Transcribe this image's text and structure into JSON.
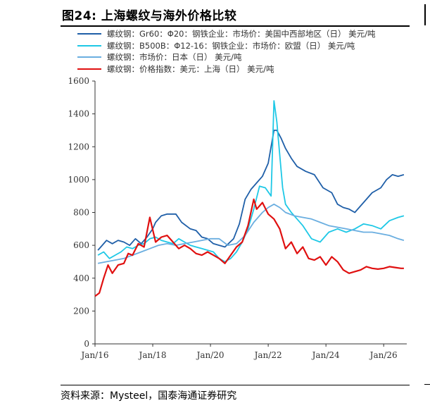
{
  "title": "图24:  上海螺纹与海外价格比较",
  "source": "资料来源：Mysteel，国泰海通证券研究",
  "chart_data": {
    "type": "line",
    "ylim": [
      0,
      1600
    ],
    "y_ticks": [
      "0",
      "200",
      "400",
      "600",
      "800",
      "1000",
      "1200",
      "1400",
      "1600"
    ],
    "x_ticks": [
      "Jan/16",
      "Jan/18",
      "Jan/20",
      "Jan/22",
      "Jan/24",
      "Jan/26"
    ],
    "xlim": [
      2016.0,
      2026.8
    ],
    "grid": false,
    "legend_position": "top-left",
    "series": [
      {
        "name": "螺纹钢：Gr60：Φ20：钢铁企业：市场价：美国中西部地区（日） 美元/吨",
        "color": "#1f5fa8",
        "x": [
          2016.1,
          2016.25,
          2016.4,
          2016.6,
          2016.8,
          2017.0,
          2017.2,
          2017.4,
          2017.6,
          2017.8,
          2018.0,
          2018.1,
          2018.3,
          2018.5,
          2018.8,
          2019.0,
          2019.3,
          2019.5,
          2019.7,
          2019.9,
          2020.1,
          2020.3,
          2020.5,
          2020.8,
          2021.0,
          2021.2,
          2021.4,
          2021.6,
          2021.8,
          2022.0,
          2022.2,
          2022.3,
          2022.45,
          2022.6,
          2022.8,
          2023.0,
          2023.3,
          2023.6,
          2023.9,
          2024.2,
          2024.4,
          2024.6,
          2024.8,
          2025.0,
          2025.3,
          2025.6,
          2025.9,
          2026.1,
          2026.3,
          2026.5,
          2026.7
        ],
        "y": [
          570,
          600,
          630,
          610,
          630,
          620,
          600,
          640,
          610,
          650,
          700,
          740,
          780,
          790,
          790,
          740,
          700,
          690,
          650,
          640,
          610,
          600,
          590,
          640,
          730,
          880,
          940,
          980,
          1020,
          1100,
          1300,
          1300,
          1250,
          1190,
          1130,
          1080,
          1050,
          1030,
          950,
          920,
          850,
          830,
          820,
          800,
          860,
          920,
          950,
          1000,
          1030,
          1020,
          1030
        ]
      },
      {
        "name": "螺纹钢：B500B：Φ12-16：钢铁企业：市场价：欧盟（日） 美元/吨",
        "color": "#1ec8e6",
        "x": [
          2016.1,
          2016.3,
          2016.5,
          2016.7,
          2016.9,
          2017.1,
          2017.3,
          2017.5,
          2017.7,
          2017.9,
          2018.1,
          2018.3,
          2018.5,
          2018.7,
          2018.9,
          2019.1,
          2019.3,
          2019.5,
          2019.7,
          2019.9,
          2020.1,
          2020.3,
          2020.5,
          2020.7,
          2020.9,
          2021.1,
          2021.3,
          2021.5,
          2021.7,
          2021.9,
          2022.1,
          2022.2,
          2022.3,
          2022.4,
          2022.5,
          2022.6,
          2022.8,
          2023.0,
          2023.2,
          2023.5,
          2023.8,
          2024.1,
          2024.4,
          2024.7,
          2025.0,
          2025.3,
          2025.6,
          2025.9,
          2026.2,
          2026.5,
          2026.7
        ],
        "y": [
          540,
          560,
          520,
          540,
          560,
          590,
          580,
          600,
          610,
          640,
          650,
          630,
          620,
          610,
          640,
          620,
          600,
          590,
          580,
          570,
          560,
          520,
          500,
          520,
          560,
          620,
          700,
          820,
          960,
          950,
          900,
          1480,
          1350,
          1150,
          950,
          850,
          800,
          760,
          720,
          640,
          620,
          680,
          700,
          680,
          700,
          730,
          720,
          700,
          750,
          770,
          780
        ]
      },
      {
        "name": "螺纹钢：市场价：日本（日） 美元/吨",
        "color": "#6aaee0",
        "x": [
          2016.1,
          2016.4,
          2016.7,
          2017.0,
          2017.3,
          2017.6,
          2017.9,
          2018.2,
          2018.5,
          2018.8,
          2019.1,
          2019.4,
          2019.7,
          2020.0,
          2020.3,
          2020.6,
          2020.9,
          2021.2,
          2021.5,
          2021.8,
          2022.0,
          2022.2,
          2022.4,
          2022.6,
          2022.9,
          2023.2,
          2023.5,
          2023.8,
          2024.1,
          2024.4,
          2024.7,
          2025.0,
          2025.3,
          2025.6,
          2025.9,
          2026.2,
          2026.5,
          2026.7
        ],
        "y": [
          490,
          500,
          510,
          520,
          540,
          560,
          580,
          600,
          610,
          600,
          610,
          620,
          630,
          640,
          640,
          600,
          610,
          660,
          740,
          800,
          830,
          850,
          830,
          800,
          780,
          770,
          760,
          740,
          720,
          710,
          700,
          690,
          680,
          680,
          670,
          660,
          640,
          630
        ]
      },
      {
        "name": "螺纹钢：价格指数：美元：上海（日） 美元/吨",
        "color": "#e01010",
        "x": [
          2016.0,
          2016.15,
          2016.3,
          2016.45,
          2016.6,
          2016.8,
          2017.0,
          2017.15,
          2017.3,
          2017.5,
          2017.7,
          2017.9,
          2018.1,
          2018.3,
          2018.5,
          2018.7,
          2018.9,
          2019.1,
          2019.3,
          2019.5,
          2019.7,
          2019.9,
          2020.1,
          2020.3,
          2020.5,
          2020.7,
          2020.9,
          2021.1,
          2021.3,
          2021.5,
          2021.6,
          2021.8,
          2022.0,
          2022.2,
          2022.4,
          2022.6,
          2022.8,
          2023.0,
          2023.2,
          2023.4,
          2023.6,
          2023.8,
          2024.0,
          2024.2,
          2024.4,
          2024.6,
          2024.8,
          2025.0,
          2025.2,
          2025.4,
          2025.6,
          2025.8,
          2026.0,
          2026.2,
          2026.4,
          2026.6,
          2026.7
        ],
        "y": [
          290,
          310,
          400,
          480,
          430,
          480,
          490,
          550,
          540,
          610,
          590,
          770,
          620,
          650,
          660,
          620,
          580,
          600,
          580,
          550,
          540,
          560,
          540,
          520,
          490,
          540,
          590,
          620,
          720,
          880,
          820,
          860,
          790,
          760,
          700,
          580,
          620,
          550,
          590,
          520,
          510,
          530,
          480,
          530,
          500,
          450,
          430,
          440,
          450,
          470,
          460,
          455,
          460,
          470,
          465,
          460,
          460
        ]
      }
    ]
  }
}
